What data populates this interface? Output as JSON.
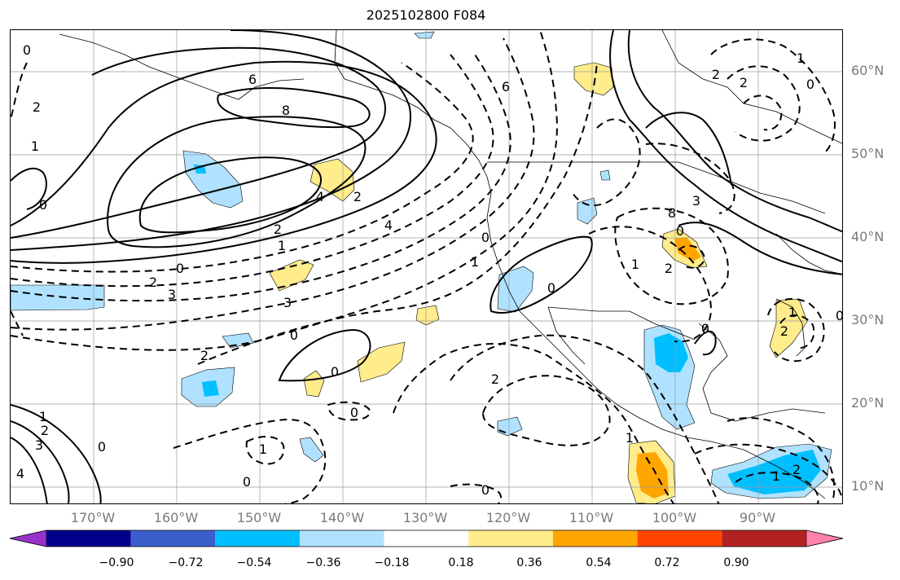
{
  "title": "2025102800 F084",
  "lat_labels": [
    "60°N",
    "50°N",
    "40°N",
    "30°N",
    "20°N",
    "10°N"
  ],
  "lon_labels": [
    "170°W",
    "160°W",
    "150°W",
    "140°W",
    "130°W",
    "120°W",
    "110°W",
    "100°W",
    "90°W"
  ],
  "colorbar": {
    "tick_labels": [
      "−0.90",
      "−0.72",
      "−0.54",
      "−0.36",
      "−0.18",
      "0.18",
      "0.36",
      "0.54",
      "0.72",
      "0.90"
    ],
    "colors": [
      "#9932CC",
      "#00008B",
      "#3A5FCD",
      "#00BFFF",
      "#B0E2FF",
      "#FFFFFF",
      "#FFEC8B",
      "#FFA500",
      "#FF4500",
      "#B22222",
      "#FF82AB"
    ]
  },
  "contour_labels": [
    "0",
    "2",
    "1",
    "6",
    "8",
    "4",
    "2",
    "1",
    "0",
    "2",
    "3",
    "0",
    "6",
    "4",
    "2",
    "3",
    "0",
    "2",
    "0",
    "0",
    "1",
    "0",
    "1",
    "2",
    "3",
    "4",
    "0",
    "0",
    "2",
    "1",
    "0",
    "0",
    "1",
    "2",
    "3",
    "8",
    "0",
    "2",
    "1",
    "1",
    "2",
    "0",
    "1",
    "2",
    "0",
    "0",
    "1",
    "2"
  ]
}
